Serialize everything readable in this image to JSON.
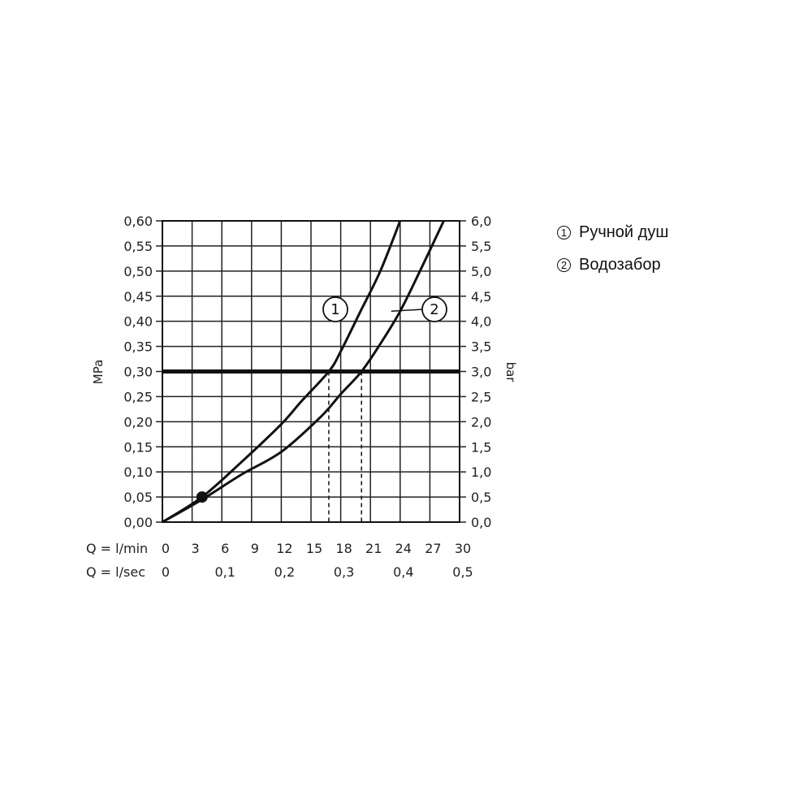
{
  "chart_data": {
    "type": "line",
    "left_axis": {
      "label": "MPa",
      "range": [
        0,
        0.6
      ],
      "ticks": [
        "0,00",
        "0,05",
        "0,10",
        "0,15",
        "0,20",
        "0,25",
        "0,30",
        "0,35",
        "0,40",
        "0,45",
        "0,50",
        "0,55",
        "0,60"
      ]
    },
    "right_axis": {
      "label": "bar",
      "range": [
        0,
        6
      ],
      "ticks": [
        "0,0",
        "0,5",
        "1,0",
        "1,5",
        "2,0",
        "2,5",
        "3,0",
        "3,5",
        "4,0",
        "4,5",
        "5,0",
        "5,5",
        "6,0"
      ]
    },
    "x_axis_lmin": {
      "label": "Q = l/min",
      "range": [
        0,
        30
      ],
      "ticks": [
        "0",
        "3",
        "6",
        "9",
        "12",
        "15",
        "18",
        "21",
        "24",
        "27",
        "30"
      ]
    },
    "x_axis_lsec": {
      "label": "Q = l/sec",
      "ticks": [
        {
          "value": 0,
          "text": "0"
        },
        {
          "value": 0.1,
          "text": "0,1"
        },
        {
          "value": 0.2,
          "text": "0,2"
        },
        {
          "value": 0.3,
          "text": "0,3"
        },
        {
          "value": 0.4,
          "text": "0,4"
        },
        {
          "value": 0.5,
          "text": "0,5"
        }
      ]
    },
    "reference_line": {
      "y": 0.3
    },
    "series": [
      {
        "marker": "1",
        "name": "Ручной душ",
        "x": [
          0,
          4,
          8,
          12,
          14,
          16.8,
          18,
          20,
          22,
          24
        ],
        "y": [
          0,
          0.05,
          0.12,
          0.195,
          0.24,
          0.3,
          0.34,
          0.42,
          0.5,
          0.6
        ]
      },
      {
        "marker": "2",
        "name": "Водозабор",
        "x": [
          0,
          4,
          8,
          12,
          16,
          18,
          20.1,
          22,
          24,
          26,
          28.4
        ],
        "y": [
          0,
          0.045,
          0.095,
          0.14,
          0.21,
          0.255,
          0.3,
          0.355,
          0.42,
          0.5,
          0.6
        ]
      }
    ],
    "intersections": [
      {
        "series": "1",
        "x": 16.8,
        "y": 0.3
      },
      {
        "series": "2",
        "x": 20.1,
        "y": 0.3
      }
    ],
    "point": {
      "x": 4,
      "y": 0.05
    },
    "grid": true
  }
}
